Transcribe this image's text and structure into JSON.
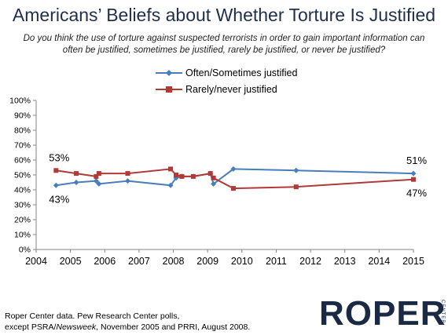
{
  "title": "Americans’ Beliefs about Whether Torture Is Justified",
  "subtitle": "Do you think the use of torture against suspected terrorists in order to gain important information can often be justified, sometimes be justified, rarely be justified, or never be justified?",
  "source_line1": "Roper Center data. Pew Research Center polls,",
  "source_line2_pre": "except PSRA/",
  "source_line2_em": "Newsweek",
  "source_line2_post": ", November 2005 and PRRI, August 2008.",
  "logo": {
    "text": "ROPER",
    "tag": "CENTER"
  },
  "colors": {
    "often": "#4a7ebb",
    "rarely": "#b03a36",
    "axis": "#868686",
    "grid": "#d9d9d9"
  },
  "chart_data": {
    "type": "line",
    "xlim": [
      2004,
      2015
    ],
    "ylim": [
      0,
      100
    ],
    "x_ticks": [
      "2004",
      "2005",
      "2006",
      "2007",
      "2008",
      "2009",
      "2010",
      "2011",
      "2012",
      "2013",
      "2014",
      "2015"
    ],
    "y_ticks": [
      "0%",
      "10%",
      "20%",
      "30%",
      "40%",
      "50%",
      "60%",
      "70%",
      "80%",
      "90%",
      "100%"
    ],
    "legend_position": "top",
    "grid": false,
    "series": [
      {
        "name": "Often/Sometimes justified",
        "color": "#4a7ebb",
        "marker": "diamond",
        "points": [
          [
            2004.58,
            43
          ],
          [
            2005.17,
            45
          ],
          [
            2005.75,
            46
          ],
          [
            2005.83,
            44
          ],
          [
            2006.67,
            46
          ],
          [
            2007.92,
            43
          ],
          [
            2008.08,
            48
          ],
          [
            2008.25,
            49
          ],
          [
            2008.58,
            49
          ],
          [
            2009.08,
            51
          ],
          [
            2009.17,
            44
          ],
          [
            2009.75,
            54
          ],
          [
            2011.58,
            53
          ],
          [
            2015.0,
            51
          ]
        ]
      },
      {
        "name": "Rarely/never justified",
        "color": "#b03a36",
        "marker": "square",
        "points": [
          [
            2004.58,
            53
          ],
          [
            2005.17,
            51
          ],
          [
            2005.75,
            49
          ],
          [
            2005.83,
            51
          ],
          [
            2006.67,
            51
          ],
          [
            2007.92,
            54
          ],
          [
            2008.08,
            50
          ],
          [
            2008.25,
            49
          ],
          [
            2008.58,
            49
          ],
          [
            2009.08,
            51
          ],
          [
            2009.17,
            48
          ],
          [
            2009.75,
            41
          ],
          [
            2011.58,
            42
          ],
          [
            2015.0,
            47
          ]
        ]
      }
    ],
    "annotations": [
      {
        "text": "53%",
        "x": 2004.58,
        "y": 53,
        "position": "above"
      },
      {
        "text": "43%",
        "x": 2004.58,
        "y": 43,
        "position": "below"
      },
      {
        "text": "51%",
        "x": 2015.0,
        "y": 51,
        "position": "above"
      },
      {
        "text": "47%",
        "x": 2015.0,
        "y": 47,
        "position": "below"
      }
    ]
  }
}
